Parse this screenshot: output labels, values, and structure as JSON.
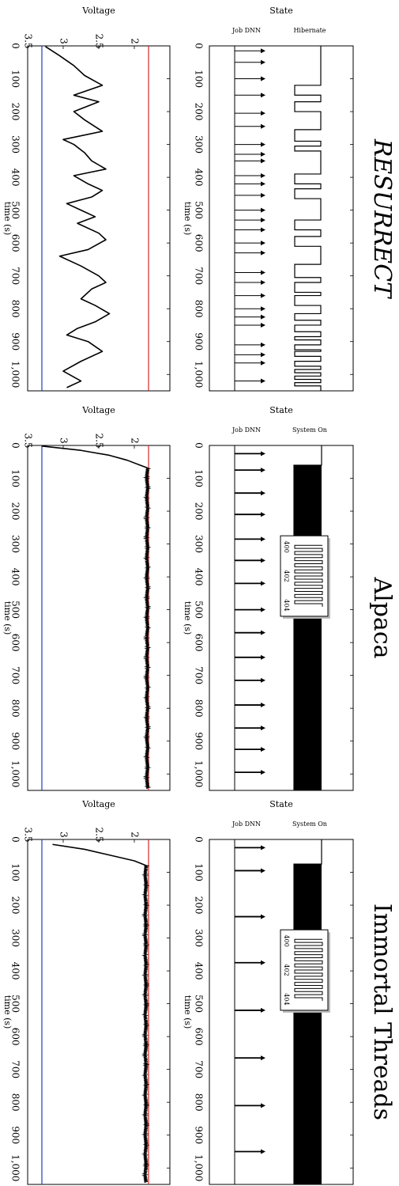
{
  "chart_data": [
    {
      "id": "resurrect",
      "section_title": "RESURRECT",
      "section_title_italic": true,
      "state": {
        "type": "timeline",
        "title": "State",
        "xlabel": "time (s)",
        "xlim": [
          0,
          1050
        ],
        "xticks": [
          0,
          100,
          200,
          300,
          400,
          500,
          600,
          700,
          800,
          900,
          1000
        ],
        "xtick_labels": [
          "0",
          "100",
          "200",
          "300",
          "400",
          "500",
          "600",
          "700",
          "800",
          "900",
          "1,000"
        ],
        "job_label": "Job DNN",
        "state_label": "Hibernate",
        "job_times": [
          15,
          50,
          100,
          150,
          205,
          245,
          300,
          330,
          350,
          395,
          420,
          455,
          500,
          530,
          560,
          600,
          630,
          690,
          720,
          760,
          800,
          825,
          850,
          910,
          940,
          965,
          1020
        ],
        "state_kind": "hibernate",
        "pulses": [
          [
            120,
            150
          ],
          [
            170,
            200
          ],
          [
            255,
            290
          ],
          [
            305,
            320
          ],
          [
            390,
            420
          ],
          [
            435,
            465
          ],
          [
            530,
            560
          ],
          [
            580,
            610
          ],
          [
            665,
            705
          ],
          [
            720,
            750
          ],
          [
            760,
            790
          ],
          [
            815,
            835
          ],
          [
            850,
            870
          ],
          [
            885,
            895
          ],
          [
            910,
            925
          ],
          [
            930,
            945
          ],
          [
            960,
            975
          ],
          [
            985,
            995
          ],
          [
            1005,
            1015
          ],
          [
            1025,
            1035
          ]
        ]
      },
      "voltage": {
        "type": "line",
        "title": "Voltage",
        "xlabel": "time (s)",
        "xlim": [
          0,
          1050
        ],
        "ylim": [
          1.5,
          3.5
        ],
        "xticks": [
          0,
          100,
          200,
          300,
          400,
          500,
          600,
          700,
          800,
          900,
          1000
        ],
        "xtick_labels": [
          "0",
          "100",
          "200",
          "300",
          "400",
          "500",
          "600",
          "700",
          "800",
          "900",
          "1,000"
        ],
        "yticks": [
          2,
          2.5,
          3,
          3.5
        ],
        "ytick_labels": [
          "2",
          "2.5",
          "3",
          "3.5"
        ],
        "hlines": [
          {
            "y": 1.8,
            "color": "#d62728"
          },
          {
            "y": 3.3,
            "color": "#1f3fbf"
          }
        ],
        "series": [
          {
            "x": [
              2,
              30,
              60,
              90,
              120,
              150,
              170,
              200,
              225,
              260,
              285,
              300,
              325,
              350,
              375,
              395,
              420,
              440,
              460,
              480,
              500,
              520,
              540,
              570,
              590,
              620,
              640,
              670,
              700,
              720,
              740,
              770,
              790,
              815,
              840,
              860,
              880,
              900,
              930,
              960,
              990,
              1020,
              1040
            ],
            "y": [
              3.25,
              3.05,
              2.85,
              2.7,
              2.45,
              2.85,
              2.5,
              2.85,
              2.7,
              2.45,
              3.0,
              2.85,
              2.7,
              2.6,
              2.4,
              2.85,
              2.65,
              2.45,
              2.6,
              2.95,
              2.75,
              2.55,
              2.8,
              2.5,
              2.4,
              2.65,
              3.05,
              2.75,
              2.5,
              2.4,
              2.6,
              2.75,
              2.55,
              2.35,
              2.55,
              2.8,
              2.95,
              2.65,
              2.45,
              2.75,
              3.0,
              2.75,
              2.95
            ]
          }
        ]
      }
    },
    {
      "id": "alpaca",
      "section_title": "Alpaca",
      "section_title_italic": false,
      "state": {
        "type": "timeline",
        "title": "State",
        "xlabel": "time (s)",
        "xlim": [
          0,
          1050
        ],
        "xticks": [
          0,
          100,
          200,
          300,
          400,
          500,
          600,
          700,
          800,
          900,
          1000
        ],
        "xtick_labels": [
          "0",
          "100",
          "200",
          "300",
          "400",
          "500",
          "600",
          "700",
          "800",
          "900",
          "1,000"
        ],
        "job_label": "Job DNN",
        "state_label": "System On",
        "job_times": [
          25,
          75,
          145,
          210,
          285,
          350,
          420,
          500,
          570,
          645,
          715,
          790,
          860,
          925,
          995
        ],
        "state_kind": "system_on",
        "on_start": 60,
        "inset": {
          "labels": [
            "400",
            "402",
            "404"
          ],
          "x0": 275,
          "x1": 520
        }
      },
      "voltage": {
        "type": "line",
        "title": "Voltage",
        "xlabel": "time (s)",
        "xlim": [
          0,
          1050
        ],
        "ylim": [
          1.5,
          3.5
        ],
        "xticks": [
          0,
          100,
          200,
          300,
          400,
          500,
          600,
          700,
          800,
          900,
          1000
        ],
        "xtick_labels": [
          "0",
          "100",
          "200",
          "300",
          "400",
          "500",
          "600",
          "700",
          "800",
          "900",
          "1,000"
        ],
        "yticks": [
          2,
          2.5,
          3,
          3.5
        ],
        "ytick_labels": [
          "2",
          "2.5",
          "3",
          "3.5"
        ],
        "hlines": [
          {
            "y": 1.8,
            "color": "#d62728"
          },
          {
            "y": 3.3,
            "color": "#1f3fbf"
          }
        ],
        "series": [
          {
            "x": [
              2,
              15,
              30,
              45,
              60,
              68,
              1045
            ],
            "y": [
              3.3,
              2.75,
              2.35,
              2.1,
              1.92,
              1.82,
              1.82
            ]
          }
        ],
        "noise": {
          "from": 68,
          "to": 1045,
          "base": 1.82,
          "amp": 0.03
        }
      }
    },
    {
      "id": "immortal",
      "section_title": "Immortal Threads",
      "section_title_italic": false,
      "state": {
        "type": "timeline",
        "title": "State",
        "xlabel": "time (s)",
        "xlim": [
          0,
          1050
        ],
        "xticks": [
          0,
          100,
          200,
          300,
          400,
          500,
          600,
          700,
          800,
          900,
          1000
        ],
        "xtick_labels": [
          "0",
          "100",
          "200",
          "300",
          "400",
          "500",
          "600",
          "700",
          "800",
          "900",
          "1,000"
        ],
        "job_label": "Job DNN",
        "state_label": "System On",
        "job_times": [
          25,
          95,
          235,
          375,
          520,
          665,
          810,
          950
        ],
        "state_kind": "system_on",
        "on_start": 75,
        "inset": {
          "labels": [
            "400",
            "402",
            "404"
          ],
          "x0": 275,
          "x1": 520
        }
      },
      "voltage": {
        "type": "line",
        "title": "Voltage",
        "xlabel": "time (s)",
        "xlim": [
          0,
          1050
        ],
        "ylim": [
          1.5,
          3.5
        ],
        "xticks": [
          0,
          100,
          200,
          300,
          400,
          500,
          600,
          700,
          800,
          900,
          1000
        ],
        "xtick_labels": [
          "0",
          "100",
          "200",
          "300",
          "400",
          "500",
          "600",
          "700",
          "800",
          "900",
          "1,000"
        ],
        "yticks": [
          2,
          2.5,
          3,
          3.5
        ],
        "ytick_labels": [
          "2",
          "2.5",
          "3",
          "3.5"
        ],
        "hlines": [
          {
            "y": 1.8,
            "color": "#d62728"
          },
          {
            "y": 3.3,
            "color": "#1f3fbf"
          }
        ],
        "series": [
          {
            "x": [
              15,
              30,
              50,
              65,
              78,
              1045
            ],
            "y": [
              3.15,
              2.7,
              2.3,
              2.0,
              1.85,
              1.85
            ]
          }
        ],
        "noise": {
          "from": 78,
          "to": 1045,
          "base": 1.84,
          "amp": 0.03
        }
      }
    }
  ]
}
